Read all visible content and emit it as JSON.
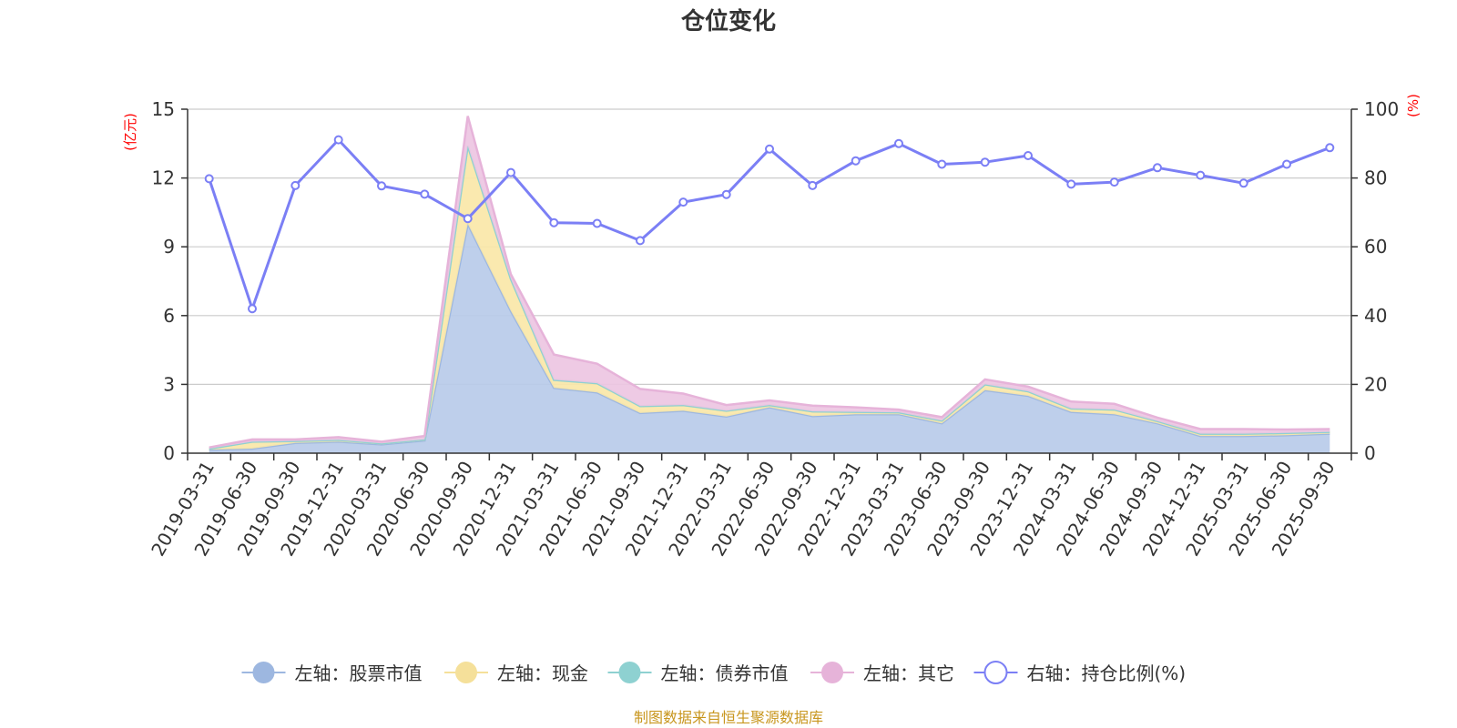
{
  "chart_data": {
    "type": "area",
    "title": "仓位变化",
    "left_axis_unit": "(亿元)",
    "right_axis_unit": "(%)",
    "left_ylim": [
      0,
      15
    ],
    "left_ticks": [
      0,
      3,
      6,
      9,
      12,
      15
    ],
    "right_ylim": [
      0,
      100
    ],
    "right_ticks": [
      0,
      20,
      40,
      60,
      80,
      100
    ],
    "categories": [
      "2019-03-31",
      "2019-06-30",
      "2019-09-30",
      "2019-12-31",
      "2020-03-31",
      "2020-06-30",
      "2020-09-30",
      "2020-12-31",
      "2021-03-31",
      "2021-06-30",
      "2021-09-30",
      "2021-12-31",
      "2022-03-31",
      "2022-06-30",
      "2022-09-30",
      "2022-12-31",
      "2023-03-31",
      "2023-06-30",
      "2023-09-30",
      "2023-12-31",
      "2024-03-31",
      "2024-06-30",
      "2024-09-30",
      "2024-12-31",
      "2025-03-31",
      "2025-06-30",
      "2025-09-30"
    ],
    "series": [
      {
        "name": "左轴：股票市值",
        "axis": "left",
        "color": "#9db7e0",
        "fill": "#b8cbe9",
        "values": [
          0.15,
          0.2,
          0.45,
          0.5,
          0.38,
          0.55,
          10.0,
          6.2,
          2.85,
          2.65,
          1.75,
          1.85,
          1.6,
          2.0,
          1.62,
          1.7,
          1.7,
          1.3,
          2.75,
          2.5,
          1.8,
          1.7,
          1.3,
          0.75,
          0.75,
          0.78,
          0.85
        ]
      },
      {
        "name": "左轴：现金",
        "axis": "left",
        "color": "#f5e09a",
        "fill": "#fae7a8",
        "values": [
          0.05,
          0.3,
          0.08,
          0.08,
          0.05,
          0.05,
          3.4,
          1.4,
          0.35,
          0.4,
          0.3,
          0.25,
          0.25,
          0.1,
          0.2,
          0.1,
          0.08,
          0.12,
          0.25,
          0.2,
          0.15,
          0.2,
          0.1,
          0.1,
          0.1,
          0.1,
          0.08
        ]
      },
      {
        "name": "左轴：债券市值",
        "axis": "left",
        "color": "#8ed1d1",
        "fill": "#8ed1d1",
        "values": [
          0,
          0,
          0,
          0,
          0,
          0,
          0,
          0,
          0,
          0,
          0,
          0,
          0,
          0,
          0,
          0,
          0,
          0,
          0,
          0,
          0,
          0,
          0,
          0,
          0,
          0,
          0
        ]
      },
      {
        "name": "左轴：其它",
        "axis": "left",
        "color": "#e6b3d9",
        "fill": "#edc6e2",
        "values": [
          0.05,
          0.1,
          0.07,
          0.12,
          0.07,
          0.15,
          1.3,
          0.2,
          1.1,
          0.85,
          0.75,
          0.5,
          0.25,
          0.2,
          0.25,
          0.2,
          0.12,
          0.15,
          0.22,
          0.2,
          0.3,
          0.25,
          0.15,
          0.2,
          0.2,
          0.15,
          0.12
        ]
      },
      {
        "name": "右轴：持仓比例(%)",
        "axis": "right",
        "color": "#7b7ff5",
        "values": [
          79.8,
          42.0,
          77.8,
          91.1,
          77.7,
          75.3,
          68.2,
          81.6,
          67.0,
          66.8,
          61.8,
          73.0,
          75.2,
          88.4,
          77.8,
          85.0,
          90.0,
          84.0,
          84.6,
          86.5,
          78.2,
          78.8,
          83.0,
          80.8,
          78.5,
          84.0,
          88.8
        ]
      }
    ]
  },
  "legend": [
    {
      "label": "左轴：股票市值",
      "color": "#9db7e0",
      "kind": "circle"
    },
    {
      "label": "左轴：现金",
      "color": "#f5e09a",
      "kind": "circle"
    },
    {
      "label": "左轴：债券市值",
      "color": "#8ed1d1",
      "kind": "circle"
    },
    {
      "label": "左轴：其它",
      "color": "#e6b3d9",
      "kind": "circle"
    },
    {
      "label": "右轴：持仓比例(%)",
      "color": "#7b7ff5",
      "kind": "hollow"
    }
  ],
  "source": "制图数据来自恒生聚源数据库"
}
